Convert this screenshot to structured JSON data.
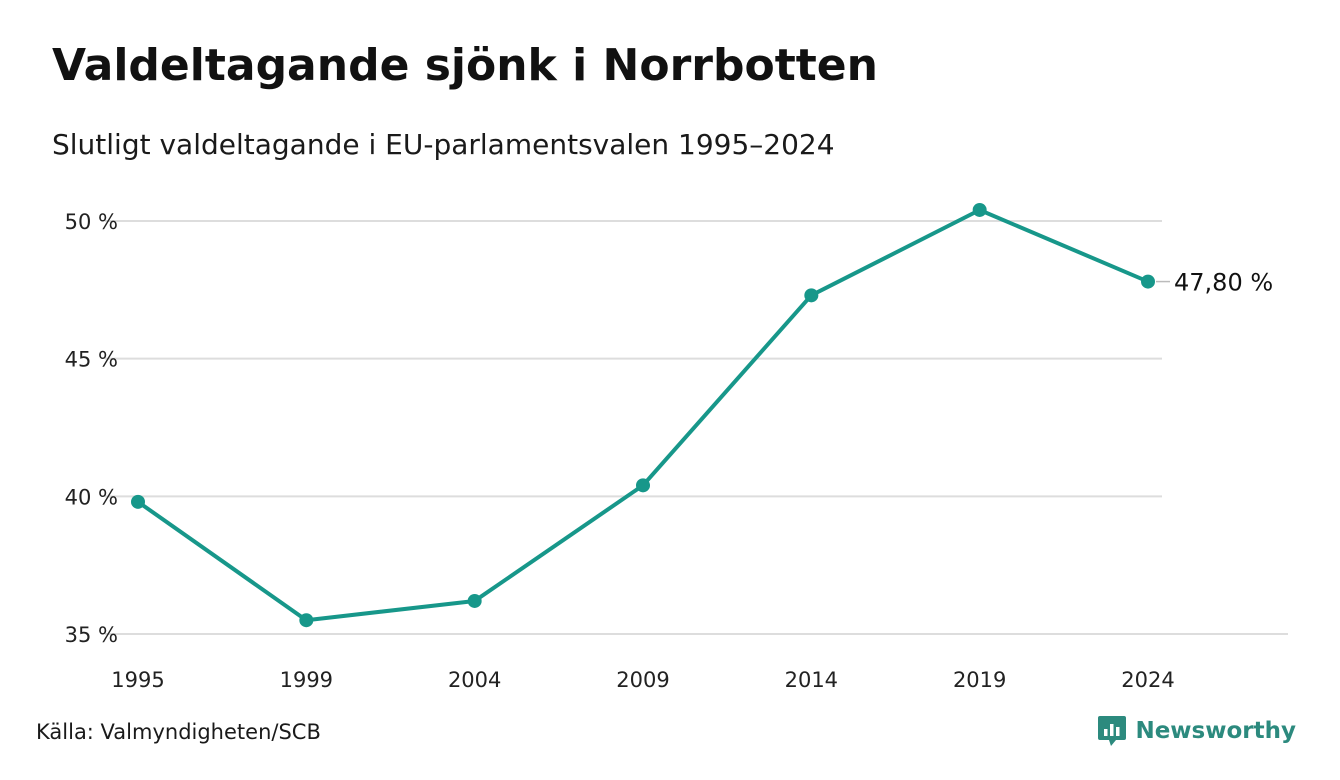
{
  "header": {
    "title": "Valdeltagande sjönk i Norrbotten",
    "subtitle": "Slutligt valdeltagande i EU-parlamentsvalen 1995–2024"
  },
  "footer": {
    "source": "Källa: Valmyndigheten/SCB",
    "brand": "Newsworthy",
    "brand_icon": "chart-bubble-icon"
  },
  "colors": {
    "line": "#17978a",
    "grid": "#dddddd",
    "brand": "#2c8a7e"
  },
  "chart_data": {
    "type": "line",
    "title": "Valdeltagande sjönk i Norrbotten",
    "subtitle": "Slutligt valdeltagande i EU-parlamentsvalen 1995–2024",
    "x": [
      "1995",
      "1999",
      "2004",
      "2009",
      "2014",
      "2019",
      "2024"
    ],
    "series": [
      {
        "values": [
          39.8,
          35.5,
          36.2,
          40.4,
          47.3,
          50.4,
          47.8
        ]
      }
    ],
    "y_ticks": [
      35,
      40,
      45,
      50
    ],
    "y_tick_labels": [
      "35 %",
      "40 %",
      "45 %",
      "50 %"
    ],
    "ylim": [
      35,
      50
    ],
    "grid": true,
    "end_label": "47,80 %",
    "xlabel": "",
    "ylabel": ""
  }
}
